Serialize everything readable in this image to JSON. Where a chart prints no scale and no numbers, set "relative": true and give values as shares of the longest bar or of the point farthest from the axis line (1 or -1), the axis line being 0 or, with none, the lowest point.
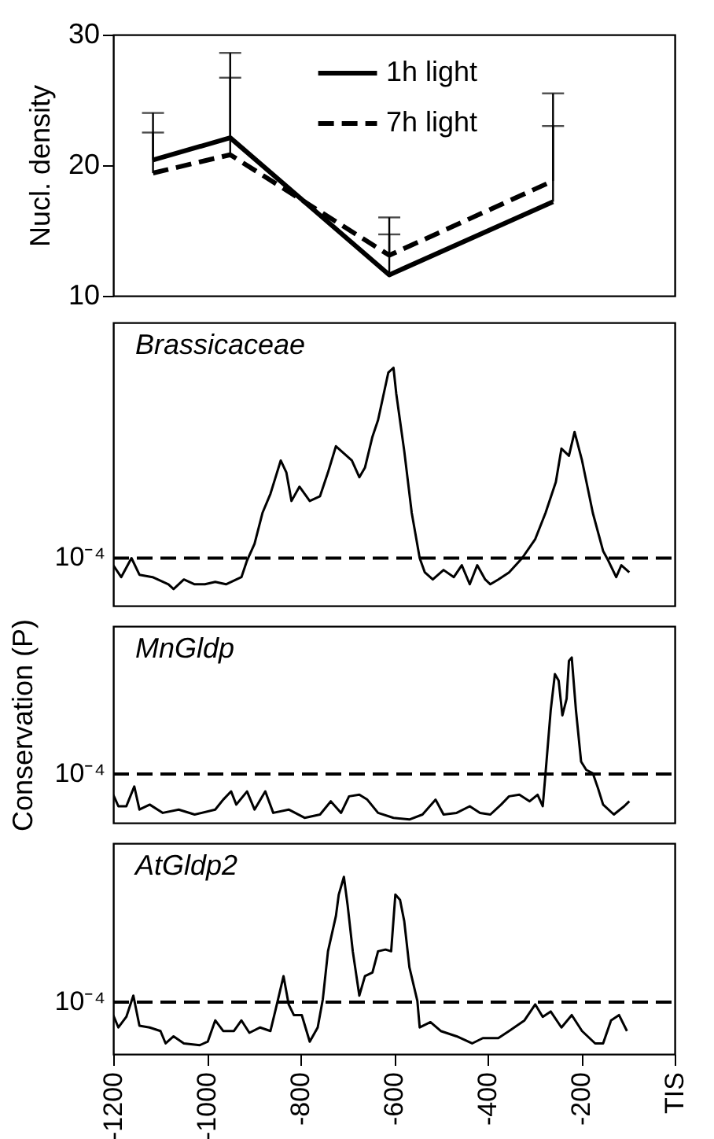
{
  "chart_data": [
    {
      "type": "line",
      "ylabel": "Nucl. density",
      "x": [
        -1115,
        -950,
        -610,
        -260
      ],
      "xlim": [
        -1200,
        0
      ],
      "ylim": [
        10,
        30
      ],
      "yticks": [
        10,
        20,
        30
      ],
      "tick_labels": "y",
      "legend": "top",
      "series": [
        {
          "name": "1h light",
          "color": "#000000",
          "line_style": "solid",
          "values": [
            20.4,
            22.1,
            11.6,
            17.2
          ],
          "errors": [
            [
              20.4,
              24.0
            ],
            [
              22.1,
              28.6
            ],
            [
              11.6,
              16.0
            ],
            [
              17.2,
              25.5
            ]
          ]
        },
        {
          "name": "7h light",
          "color": "#000000",
          "line_style": "dashed",
          "values": [
            19.4,
            20.8,
            13.1,
            18.8
          ],
          "errors": [
            [
              19.4,
              22.5
            ],
            [
              20.8,
              26.7
            ],
            [
              13.1,
              14.7
            ],
            [
              18.8,
              23.0
            ]
          ]
        }
      ]
    },
    {
      "type": "line",
      "relative": true,
      "annotations": [
        "Brassicaceae"
      ],
      "xlim": [
        -1200,
        0
      ],
      "tick_labels": false,
      "x": [
        -1200,
        -1183,
        -1161,
        -1144,
        -1116,
        -1082,
        -1071,
        -1049,
        -1026,
        -1004,
        -982,
        -959,
        -926,
        -914,
        -898,
        -881,
        -864,
        -853,
        -842,
        -830,
        -819,
        -802,
        -780,
        -758,
        -741,
        -724,
        -707,
        -690,
        -674,
        -662,
        -646,
        -634,
        -623,
        -612,
        -601,
        -595,
        -578,
        -562,
        -545,
        -534,
        -517,
        -494,
        -472,
        -455,
        -438,
        -422,
        -405,
        -394,
        -377,
        -354,
        -326,
        -298,
        -276,
        -254,
        -242,
        -226,
        -214,
        -198,
        -175,
        -153,
        -142,
        -125,
        -114,
        -97
      ],
      "ref_lines": [
        {
          "axis": "y",
          "value": 0.2,
          "label": "10⁻⁴",
          "line_style": "dashed"
        }
      ],
      "series": [
        {
          "color": "#000000",
          "line_style": "solid",
          "values": [
            0.17,
            0.12,
            0.2,
            0.13,
            0.12,
            0.09,
            0.07,
            0.11,
            0.09,
            0.09,
            0.1,
            0.09,
            0.12,
            0.19,
            0.26,
            0.39,
            0.47,
            0.54,
            0.61,
            0.56,
            0.44,
            0.5,
            0.44,
            0.46,
            0.56,
            0.67,
            0.64,
            0.61,
            0.54,
            0.58,
            0.71,
            0.78,
            0.88,
            0.98,
            1.0,
            0.89,
            0.65,
            0.39,
            0.2,
            0.14,
            0.11,
            0.15,
            0.12,
            0.17,
            0.09,
            0.17,
            0.11,
            0.09,
            0.11,
            0.14,
            0.2,
            0.28,
            0.39,
            0.52,
            0.66,
            0.63,
            0.73,
            0.61,
            0.39,
            0.23,
            0.19,
            0.12,
            0.17,
            0.14
          ]
        }
      ]
    },
    {
      "type": "line",
      "relative": true,
      "annotations": [
        "MnGldp"
      ],
      "ylabel": "Conservation (P)",
      "xlim": [
        -1200,
        0
      ],
      "tick_labels": false,
      "x": [
        -1200,
        -1189,
        -1172,
        -1155,
        -1144,
        -1122,
        -1094,
        -1060,
        -1026,
        -982,
        -965,
        -948,
        -937,
        -914,
        -898,
        -875,
        -858,
        -825,
        -791,
        -758,
        -735,
        -713,
        -696,
        -674,
        -657,
        -634,
        -601,
        -567,
        -539,
        -511,
        -494,
        -466,
        -438,
        -416,
        -394,
        -371,
        -354,
        -332,
        -310,
        -293,
        -282,
        -276,
        -265,
        -256,
        -248,
        -240,
        -231,
        -226,
        -220,
        -211,
        -200,
        -189,
        -175,
        -164,
        -153,
        -130,
        -108,
        -97
      ],
      "ref_lines": [
        {
          "axis": "y",
          "value": 0.295,
          "label": "10⁻⁴",
          "line_style": "dashed"
        }
      ],
      "series": [
        {
          "color": "#000000",
          "line_style": "solid",
          "values": [
            0.17,
            0.1,
            0.1,
            0.22,
            0.08,
            0.11,
            0.06,
            0.08,
            0.05,
            0.08,
            0.14,
            0.19,
            0.11,
            0.19,
            0.08,
            0.19,
            0.06,
            0.08,
            0.03,
            0.05,
            0.13,
            0.06,
            0.16,
            0.17,
            0.14,
            0.06,
            0.03,
            0.02,
            0.05,
            0.14,
            0.05,
            0.06,
            0.1,
            0.06,
            0.05,
            0.11,
            0.16,
            0.17,
            0.13,
            0.17,
            0.1,
            0.3,
            0.68,
            0.9,
            0.86,
            0.65,
            0.75,
            0.98,
            1.0,
            0.68,
            0.37,
            0.32,
            0.3,
            0.21,
            0.11,
            0.05,
            0.1,
            0.13
          ]
        }
      ]
    },
    {
      "type": "line",
      "relative": true,
      "annotations": [
        "AtGldp2"
      ],
      "xlim": [
        -1200,
        0
      ],
      "tick_labels": "x",
      "xticks": [
        -1200,
        -1000,
        -800,
        -600,
        -400,
        -200,
        {
          "value": 0,
          "label": "TIS"
        }
      ],
      "x": [
        -1200,
        -1189,
        -1172,
        -1157,
        -1144,
        -1122,
        -1099,
        -1088,
        -1071,
        -1049,
        -1015,
        -998,
        -982,
        -965,
        -942,
        -926,
        -909,
        -886,
        -864,
        -853,
        -836,
        -825,
        -814,
        -797,
        -780,
        -763,
        -752,
        -741,
        -724,
        -718,
        -707,
        -699,
        -688,
        -674,
        -662,
        -646,
        -634,
        -618,
        -606,
        -597,
        -587,
        -578,
        -567,
        -550,
        -545,
        -522,
        -500,
        -466,
        -433,
        -410,
        -377,
        -354,
        -321,
        -298,
        -282,
        -265,
        -242,
        -220,
        -198,
        -170,
        -153,
        -136,
        -119,
        -102
      ],
      "ref_lines": [
        {
          "axis": "y",
          "value": 0.293,
          "label": "10⁻⁴",
          "line_style": "dashed"
        }
      ],
      "series": [
        {
          "color": "#000000",
          "line_style": "solid",
          "values": [
            0.22,
            0.15,
            0.21,
            0.33,
            0.16,
            0.15,
            0.13,
            0.06,
            0.1,
            0.06,
            0.05,
            0.07,
            0.19,
            0.13,
            0.13,
            0.19,
            0.12,
            0.15,
            0.13,
            0.25,
            0.44,
            0.28,
            0.22,
            0.22,
            0.07,
            0.15,
            0.31,
            0.58,
            0.78,
            0.9,
            1.0,
            0.84,
            0.58,
            0.33,
            0.44,
            0.46,
            0.58,
            0.59,
            0.58,
            0.9,
            0.87,
            0.75,
            0.49,
            0.3,
            0.15,
            0.18,
            0.13,
            0.1,
            0.06,
            0.09,
            0.09,
            0.13,
            0.19,
            0.28,
            0.21,
            0.24,
            0.15,
            0.22,
            0.13,
            0.06,
            0.06,
            0.19,
            0.22,
            0.13
          ]
        }
      ]
    }
  ]
}
